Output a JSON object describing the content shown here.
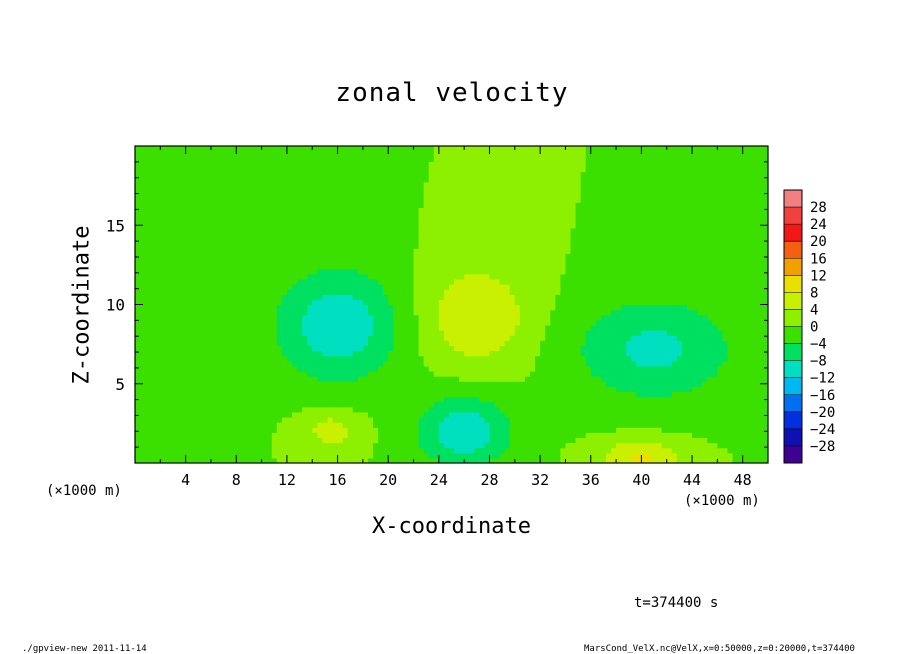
{
  "chart_data": {
    "type": "heatmap",
    "title": "zonal velocity",
    "xlabel": "X-coordinate",
    "ylabel": "Z-coordinate",
    "x_unit": "(×1000 m)",
    "xlim": [
      0,
      50
    ],
    "ylim": [
      0,
      20
    ],
    "x_ticks": [
      4,
      8,
      12,
      16,
      20,
      24,
      28,
      32,
      36,
      40,
      44,
      48
    ],
    "y_ticks": [
      5,
      10,
      15
    ],
    "z_range": [
      -30,
      30
    ],
    "colorbar": {
      "labels": [
        "28",
        "24",
        "20",
        "16",
        "12",
        "8",
        "4",
        "0",
        "−4",
        "−8",
        "−12",
        "−16",
        "−20",
        "−24",
        "−28"
      ],
      "levels": [
        28,
        24,
        20,
        16,
        12,
        8,
        4,
        0,
        -4,
        -8,
        -12,
        -16,
        -20,
        -24,
        -28
      ],
      "colors": [
        "#f28080",
        "#f24040",
        "#f21818",
        "#f26010",
        "#f2a000",
        "#e8e000",
        "#c8f000",
        "#8cf000",
        "#3ce000",
        "#00e060",
        "#00e0c0",
        "#00b8f0",
        "#0070f0",
        "#0030e0",
        "#1010b0",
        "#400090"
      ]
    },
    "field_base_value": 0,
    "features": [
      {
        "x": 16,
        "z": 8.7,
        "value": -11,
        "sx": 3.5,
        "sz": 2.5
      },
      {
        "x": 41,
        "z": 7.2,
        "value": -9,
        "sx": 4.5,
        "sz": 2.3
      },
      {
        "x": 26,
        "z": 2.0,
        "value": -11,
        "sx": 2.6,
        "sz": 1.6
      },
      {
        "x": 27,
        "z": 9.3,
        "value": 8,
        "sx": 3.0,
        "sz": 2.2
      },
      {
        "x": 40,
        "z": 0.4,
        "value": 9,
        "sx": 2.2,
        "sz": 0.8
      },
      {
        "x": 15.5,
        "z": 2.1,
        "value": 6,
        "sx": 1.6,
        "sz": 0.9
      },
      {
        "x": 2,
        "z": 6.8,
        "value": -4,
        "sx": 3.0,
        "sz": 1.2
      }
    ],
    "time_label": "t=374400 s"
  },
  "footer": {
    "left": "./gpview-new  2011-11-14",
    "right": "MarsCond_VelX.nc@VelX,x=0:50000,z=0:20000,t=374400"
  }
}
